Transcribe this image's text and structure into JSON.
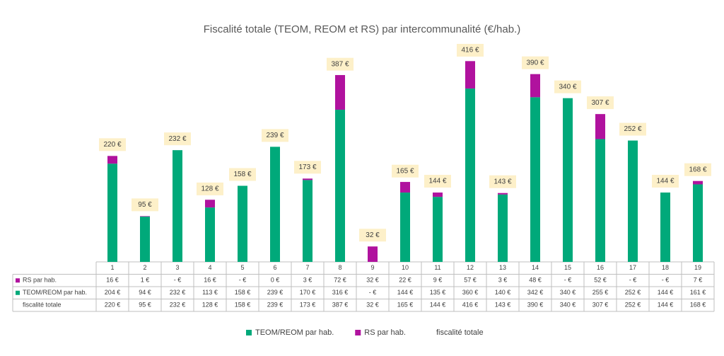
{
  "chart_data": {
    "type": "bar",
    "stacked": true,
    "title": "Fiscalité totale (TEOM, REOM et RS) par intercommunalité (€/hab.)",
    "categories": [
      "1",
      "2",
      "3",
      "4",
      "5",
      "6",
      "7",
      "8",
      "9",
      "10",
      "11",
      "12",
      "13",
      "14",
      "15",
      "16",
      "17",
      "18",
      "19"
    ],
    "series": [
      {
        "name": "RS par hab.",
        "color": "#b0129e",
        "values": [
          16,
          1,
          0,
          16,
          0,
          0,
          3,
          72,
          32,
          22,
          9,
          57,
          3,
          48,
          0,
          52,
          0,
          0,
          7
        ],
        "value_labels": [
          "16 €",
          "1 €",
          "-  €",
          "16 €",
          "-  €",
          "0 €",
          "3 €",
          "72 €",
          "32 €",
          "22 €",
          "9 €",
          "57 €",
          "3 €",
          "48 €",
          "-  €",
          "52 €",
          "-  €",
          "-  €",
          "7 €"
        ]
      },
      {
        "name": "TEOM/REOM par hab.",
        "color": "#00a97a",
        "values": [
          204,
          94,
          232,
          113,
          158,
          239,
          170,
          316,
          0,
          144,
          135,
          360,
          140,
          342,
          340,
          255,
          252,
          144,
          161
        ],
        "value_labels": [
          "204 €",
          "94 €",
          "232 €",
          "113 €",
          "158 €",
          "239 €",
          "170 €",
          "316 €",
          "-  €",
          "144 €",
          "135 €",
          "360 €",
          "140 €",
          "342 €",
          "340 €",
          "255 €",
          "252 €",
          "144 €",
          "161 €"
        ]
      },
      {
        "name": "fiscalité totale",
        "values": [
          220,
          95,
          232,
          128,
          158,
          239,
          173,
          387,
          32,
          165,
          144,
          416,
          143,
          390,
          340,
          307,
          252,
          144,
          168
        ],
        "value_labels": [
          "220 €",
          "95 €",
          "232 €",
          "128 €",
          "158 €",
          "239 €",
          "173 €",
          "387 €",
          "32 €",
          "165 €",
          "144 €",
          "416 €",
          "143 €",
          "390 €",
          "340 €",
          "307 €",
          "252 €",
          "144 €",
          "168 €"
        ]
      }
    ]
  }
}
